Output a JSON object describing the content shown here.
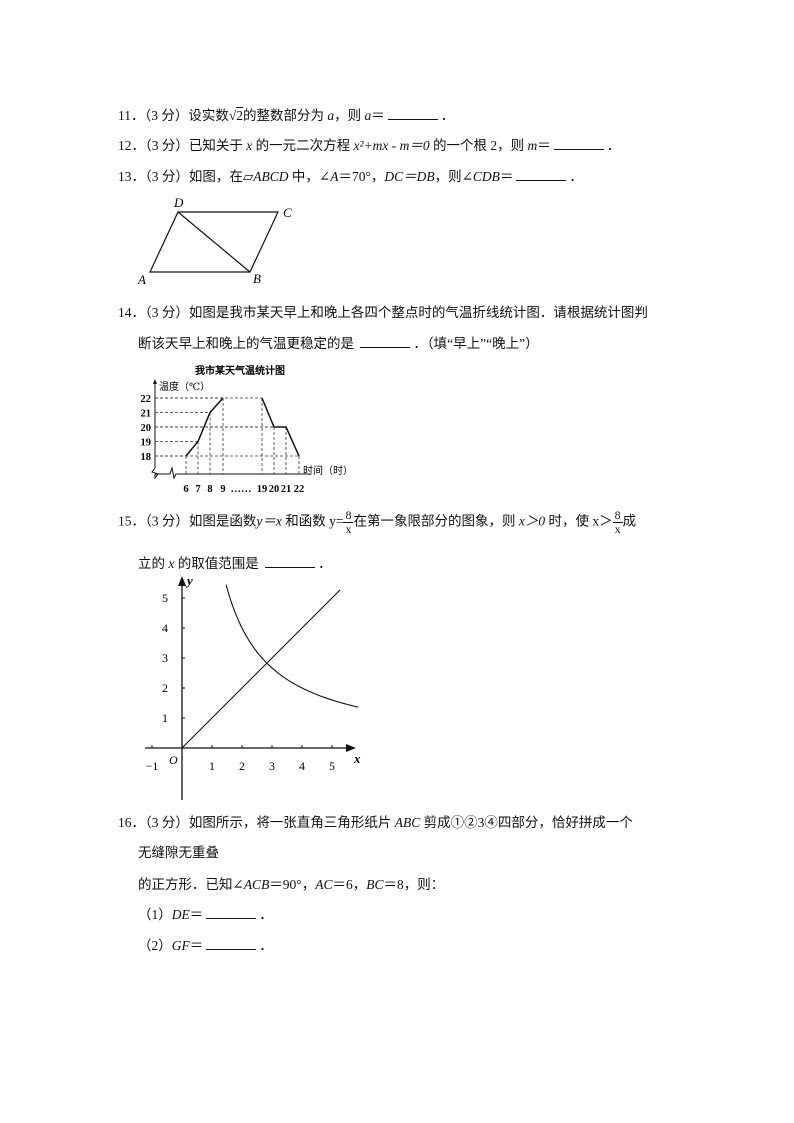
{
  "questions": [
    {
      "num": "11．",
      "score": "（3 分）",
      "text_a": "设实数",
      "sqrt_arg": "2",
      "text_b": "的整数部分为 ",
      "var": "a",
      "text_c": "，则 ",
      "answer_var": "a",
      "eq": "＝",
      "end": "．"
    },
    {
      "num": "12．",
      "score": "（3 分）",
      "text_a": "已知关于 ",
      "var": "x",
      "text_b": " 的一元二次方程 ",
      "equation": "x²+mx - m＝0",
      "text_c": " 的一个根 2，则 ",
      "answer_var": "m",
      "eq": "＝",
      "end": "．"
    },
    {
      "num": "13．",
      "score": "（3 分）",
      "text_a": "如图，在▱",
      "shape": "ABCD",
      "text_b": " 中，∠",
      "angle_var": "A",
      "text_c": "＝70°，",
      "cond": "DC＝DB",
      "text_d": "，则∠",
      "answer_var": "CDB",
      "eq": "＝",
      "end": "．"
    },
    {
      "num": "14．",
      "score": "（3 分）",
      "line1": "如图是我市某天早上和晚上各四个整点时的气温折线统计图．请根据统计图判",
      "line2": "断该天早上和晚上的气温更稳定的是 ",
      "line2_end": "．（填“早上”“晚上”）"
    },
    {
      "num": "15．",
      "score": "（3 分）",
      "text_a": "如图是函数",
      "f1": "y＝x",
      "text_b": " 和函数 ",
      "f2_lhs": "y=",
      "frac_num": "8",
      "frac_den": "x",
      "text_c": "在第一象限部分的图象，则 ",
      "cond": "x＞0",
      "text_d": " 时，使 ",
      "ineq_lhs": "x",
      "ineq_op": "＞",
      "text_e": "成",
      "line2_a": "立的 ",
      "var": "x",
      "line2_b": " 的取值范围是 ",
      "end": "．"
    },
    {
      "num": "16．",
      "score": "（3 分）",
      "line1_a": "如图所示，将一张直角三角形纸片 ",
      "tri": "ABC",
      "line1_b": " 剪成①②3④四部分，恰好拼成一个",
      "line2": "无缝隙无重叠",
      "line3_a": "的正方形．已知∠",
      "angle": "ACB",
      "line3_b": "＝90°，",
      "ac": "AC",
      "line3_c": "＝6，",
      "bc": "BC",
      "line3_d": "＝8，则：",
      "sub1_label": "（1）",
      "sub1_var": "DE",
      "sub2_label": "（2）",
      "sub2_var": "GF",
      "eq": "＝",
      "end": "．"
    }
  ],
  "figures": {
    "parallelogram": {
      "labels": [
        "D",
        "C",
        "A",
        "B"
      ]
    },
    "temperature_chart": {
      "title": "我市某天气温统计图",
      "ylabel": "温度（℃）",
      "xlabel": "时间（时）",
      "yticks": [
        "18",
        "19",
        "20",
        "21",
        "22"
      ],
      "xticks": [
        "6",
        "7",
        "8",
        "9",
        "……",
        "19",
        "20",
        "21",
        "22"
      ],
      "morning": {
        "x": [
          6,
          7,
          8,
          9
        ],
        "y": [
          18,
          19,
          21,
          22
        ]
      },
      "evening": {
        "x": [
          19,
          20,
          21,
          22
        ],
        "y": [
          22,
          20,
          20,
          18
        ]
      }
    },
    "function_graph": {
      "xlabel": "x",
      "ylabel": "y",
      "origin": "O",
      "xticks": [
        "-1",
        "1",
        "2",
        "3",
        "4",
        "5"
      ],
      "yticks": [
        "1",
        "2",
        "3",
        "4",
        "5"
      ],
      "functions": [
        "y=x",
        "y=8/x"
      ]
    }
  }
}
